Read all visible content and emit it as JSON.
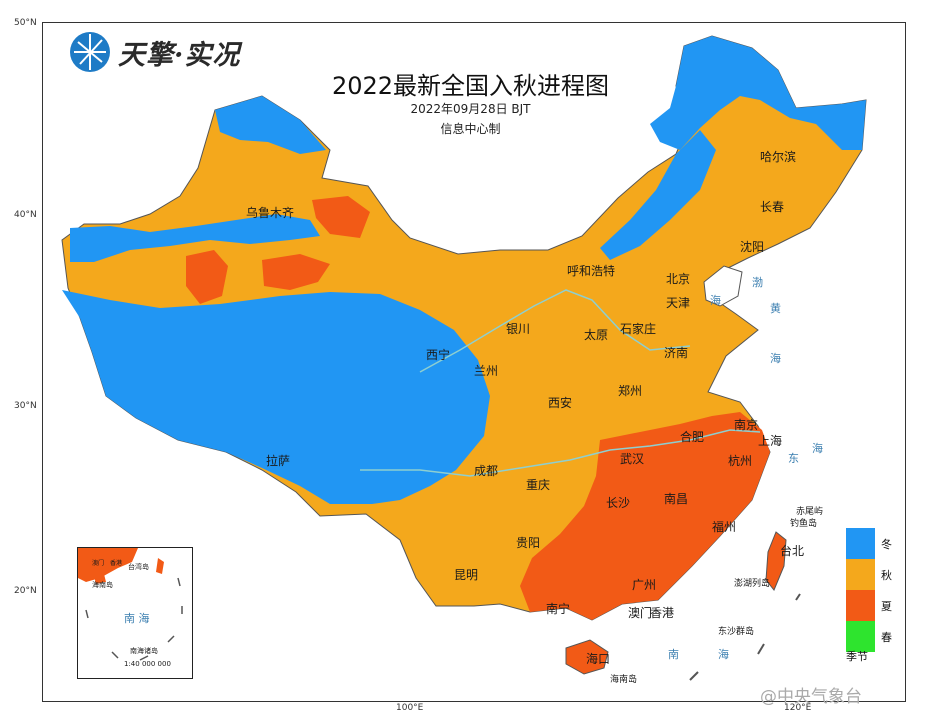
{
  "logo": {
    "text": "天擎·实况"
  },
  "title": "2022最新全国入秋进程图",
  "datetime": "2022年09月28日  BJT",
  "producer": "信息中心制",
  "ticks": {
    "lat": [
      "50°N",
      "40°N",
      "30°N",
      "20°N"
    ],
    "lon": [
      "100°E",
      "120°E"
    ]
  },
  "legend": {
    "title": "季节",
    "items": [
      {
        "label": "冬",
        "color": "#2196f3"
      },
      {
        "label": "秋",
        "color": "#f4a81c"
      },
      {
        "label": "夏",
        "color": "#f25a16"
      },
      {
        "label": "春",
        "color": "#2ee42e"
      }
    ]
  },
  "cities": {
    "wulumuqi": "乌鲁木齐",
    "haerbin": "哈尔滨",
    "changchun": "长春",
    "shenyang": "沈阳",
    "huhehaote": "呼和浩特",
    "beijing": "北京",
    "tianjin": "天津",
    "yinchuan": "银川",
    "taiyuan": "太原",
    "shijiazhuang": "石家庄",
    "jinan": "济南",
    "xining": "西宁",
    "lanzhou": "兰州",
    "zhengzhou": "郑州",
    "xian": "西安",
    "nanjing": "南京",
    "hefei": "合肥",
    "shanghai": "上海",
    "wuhan": "武汉",
    "hangzhou": "杭州",
    "lasa": "拉萨",
    "chengdu": "成都",
    "chongqing": "重庆",
    "changsha": "长沙",
    "nanchang": "南昌",
    "fuzhou": "福州",
    "taibei": "台北",
    "guiyang": "贵阳",
    "kunming": "昆明",
    "guangzhou": "广州",
    "nanning": "南宁",
    "aomen": "澳门",
    "xianggang": "香港",
    "haikou": "海口"
  },
  "islands": {
    "chiweiyu": "赤尾屿",
    "diaoyudao": "钓鱼岛",
    "penghu": "澎湖列岛",
    "dongsha": "东沙群岛",
    "hainan": "海南岛"
  },
  "seas": {
    "bo": "渤",
    "huang": "黄",
    "hai": "海",
    "dong": "东",
    "nan": "南"
  },
  "inset": {
    "sea": "南 海",
    "taiwan": "台湾岛",
    "hainan": "海南岛",
    "zhuhai": "南海诸岛",
    "scale": "1:40 000 000",
    "aomen": "澳门",
    "xianggang": "香港"
  },
  "watermark": "@中央气象台"
}
